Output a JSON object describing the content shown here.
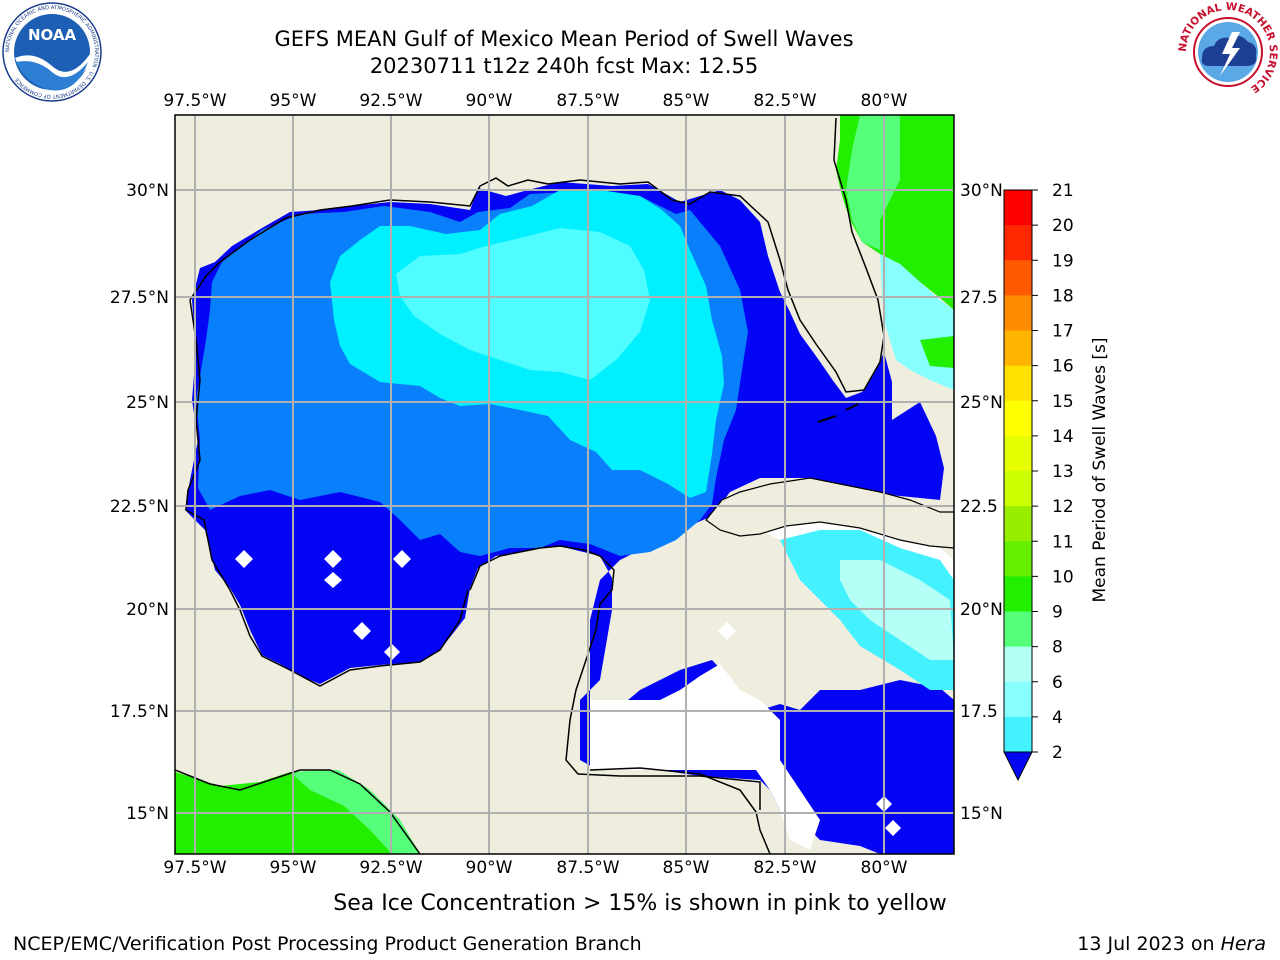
{
  "header": {
    "title_line1": "GEFS MEAN Gulf of Mexico Mean Period of Swell Waves",
    "title_line2": "20230711 t12z 240h fcst   Max: 12.55"
  },
  "map": {
    "lon_labels": [
      "97.5°W",
      "95°W",
      "92.5°W",
      "90°W",
      "87.5°W",
      "85°W",
      "82.5°W",
      "80°W"
    ],
    "lat_labels_left": [
      "30°N",
      "27.5°N",
      "25°N",
      "22.5°N",
      "20°N",
      "17.5°N",
      "15°N"
    ],
    "lat_labels_right": [
      "30°N",
      "27.5",
      "25°N",
      "22.5",
      "20°N",
      "17.5",
      "15°N"
    ],
    "land_color": "#efedde",
    "grid_color": "#b0b0b0"
  },
  "colorbar": {
    "label": "Mean Period of Swell Waves [s]",
    "ticks": [
      "2",
      "4",
      "6",
      "8",
      "9",
      "10",
      "11",
      "12",
      "13",
      "14",
      "15",
      "16",
      "17",
      "18",
      "19",
      "20",
      "21"
    ],
    "colors": [
      "#0a7ffb",
      "#00d4ff",
      "#44f2ff",
      "#88ffff",
      "#b4fff6",
      "#55ff7a",
      "#22ee00",
      "#66ee00",
      "#99ee00",
      "#ccff00",
      "#e6ff00",
      "#ffff00",
      "#ffe100",
      "#ffb400",
      "#ff8c00",
      "#ff5a00",
      "#ff2800",
      "#ff0000"
    ],
    "under_color": "#0505f5"
  },
  "footer": {
    "note": "Sea Ice Concentration > 15% is shown in pink to yellow",
    "credit": "NCEP/EMC/Verification Post Processing Product Generation Branch",
    "date": "13 Jul 2023 on",
    "host": "Hera"
  },
  "logos": {
    "noaa": "NOAA",
    "noaa_ring": "NATIONAL OCEANIC AND ATMOSPHERIC ADMINISTRATION · U.S. DEPARTMENT OF COMMERCE",
    "nws_ring": "NATIONAL WEATHER SERVICE"
  }
}
